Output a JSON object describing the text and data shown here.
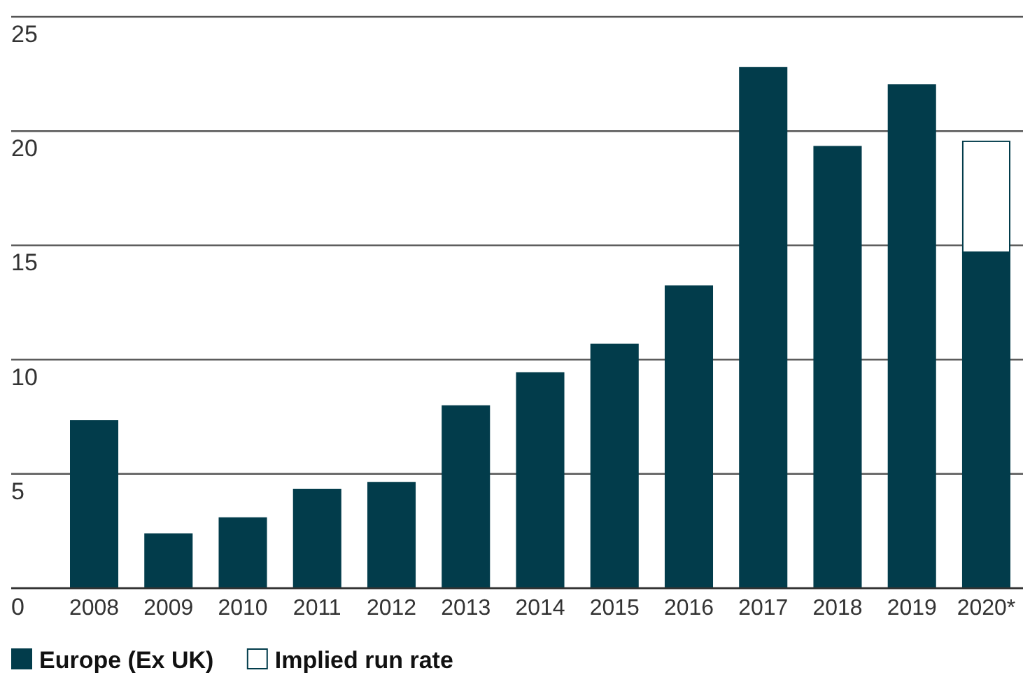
{
  "chart_data": {
    "type": "bar",
    "stacked": true,
    "categories": [
      "2008",
      "2009",
      "2010",
      "2011",
      "2012",
      "2013",
      "2014",
      "2015",
      "2016",
      "2017",
      "2018",
      "2019",
      "2020*"
    ],
    "series": [
      {
        "name": "Europe (Ex UK)",
        "color": "#023c4b",
        "values": [
          7.35,
          2.4,
          3.1,
          4.35,
          4.65,
          8.0,
          9.45,
          10.7,
          13.25,
          22.8,
          19.35,
          22.05,
          14.7
        ]
      },
      {
        "name": "Implied run rate",
        "color": "#ffffff",
        "values": [
          null,
          null,
          null,
          null,
          null,
          null,
          null,
          null,
          null,
          null,
          null,
          null,
          4.85
        ]
      }
    ],
    "ylim": [
      0,
      25
    ],
    "yticks": [
      0,
      5,
      10,
      15,
      20,
      25
    ],
    "grid": "y",
    "legend": "bottom left"
  }
}
